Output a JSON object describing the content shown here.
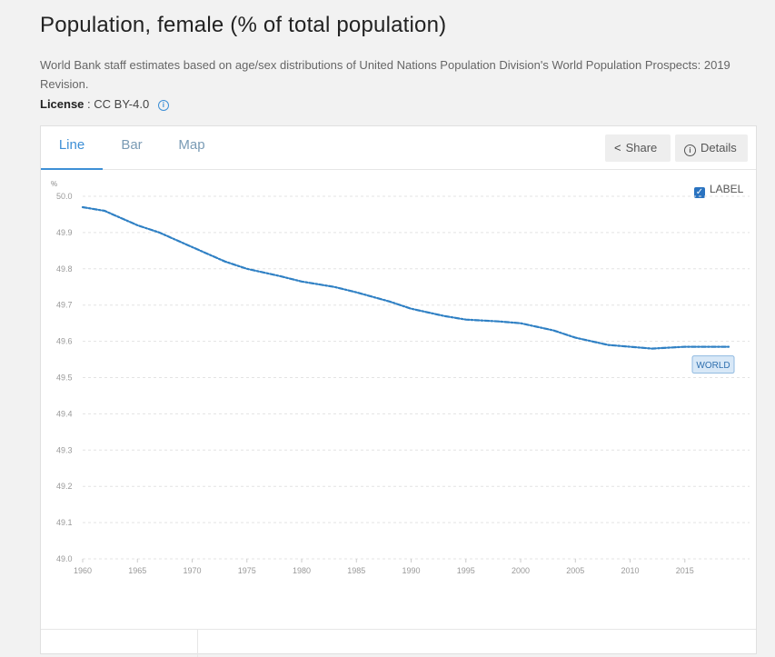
{
  "page": {
    "title": "Population, female (% of total population)",
    "description": "World Bank staff estimates based on age/sex distributions of United Nations Population Division's World Population Prospects: 2019 Revision.",
    "license_label": "License",
    "license_value": ": CC BY-4.0"
  },
  "tabs": [
    {
      "label": "Line"
    },
    {
      "label": "Bar"
    },
    {
      "label": "Map"
    }
  ],
  "actions": {
    "share": "Share",
    "details": "Details"
  },
  "label_toggle": "LABEL",
  "colors": {
    "accent": "#3d8fd6",
    "series": "#2f80c4"
  },
  "chart_data": {
    "type": "line",
    "title": "",
    "ylabel": "%",
    "xlabel": "",
    "ylim": [
      49.0,
      50.0
    ],
    "xlim": [
      1960,
      2019
    ],
    "yticks": [
      49.0,
      49.1,
      49.2,
      49.3,
      49.4,
      49.5,
      49.6,
      49.7,
      49.8,
      49.9,
      50.0
    ],
    "xticks": [
      1960,
      1965,
      1970,
      1975,
      1980,
      1985,
      1990,
      1995,
      2000,
      2005,
      2010,
      2015
    ],
    "grid": true,
    "series": [
      {
        "name": "WORLD",
        "x": [
          1960,
          1962,
          1965,
          1967,
          1970,
          1973,
          1975,
          1978,
          1980,
          1983,
          1985,
          1988,
          1990,
          1993,
          1995,
          1998,
          2000,
          2003,
          2005,
          2008,
          2010,
          2012,
          2015,
          2017,
          2019
        ],
        "y": [
          49.97,
          49.96,
          49.92,
          49.9,
          49.86,
          49.82,
          49.8,
          49.78,
          49.765,
          49.75,
          49.735,
          49.71,
          49.69,
          49.67,
          49.66,
          49.655,
          49.65,
          49.63,
          49.61,
          49.59,
          49.585,
          49.58,
          49.585,
          49.585,
          49.585
        ]
      }
    ]
  }
}
